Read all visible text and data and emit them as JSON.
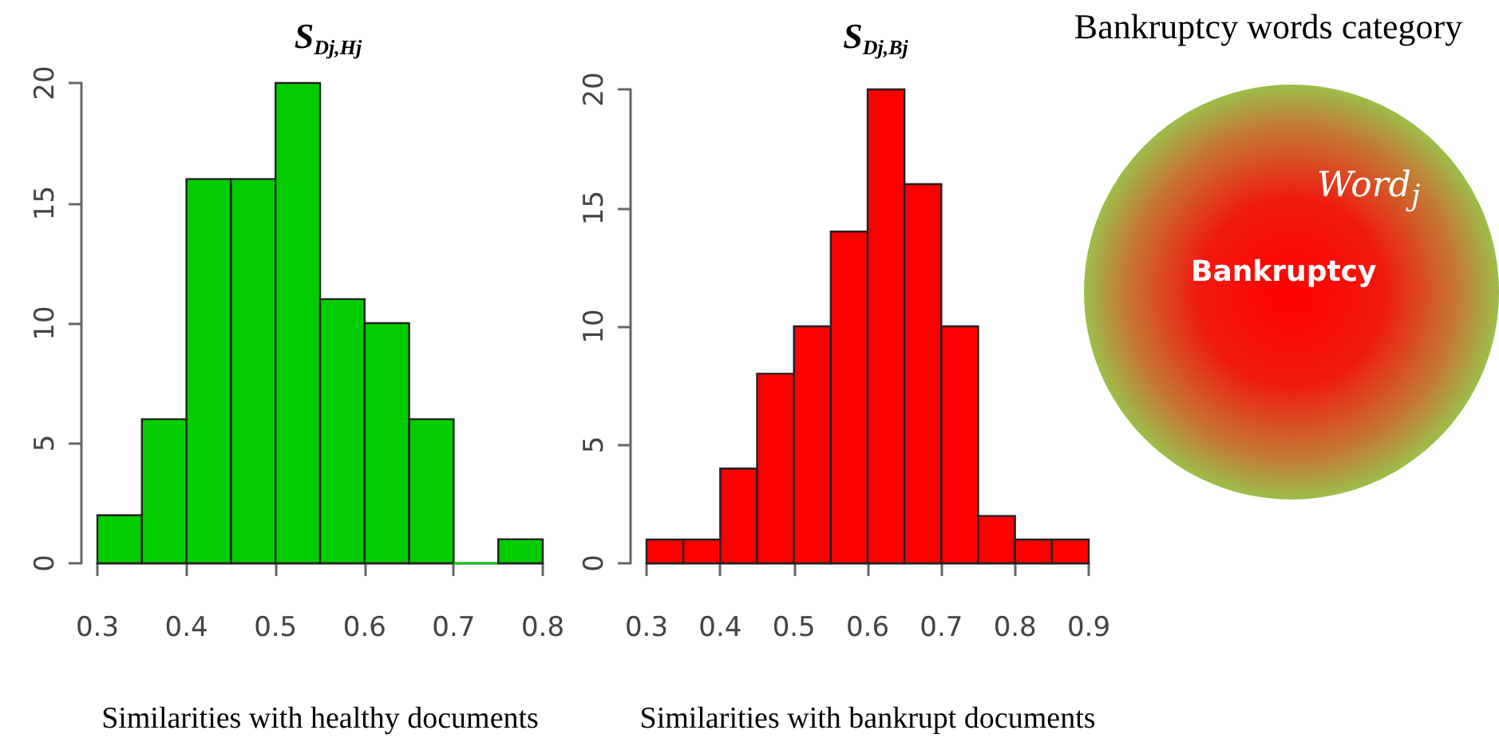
{
  "chart_data": [
    {
      "type": "histogram",
      "title": "S$_{Dj,Hj}$",
      "xlabel": "Similarities with healthy documents",
      "color": "#00cc00",
      "bins": [
        0.3,
        0.35,
        0.4,
        0.45,
        0.5,
        0.55,
        0.6,
        0.65,
        0.7,
        0.75,
        0.8
      ],
      "values": [
        2,
        6,
        16,
        16,
        20,
        11,
        10,
        6,
        0,
        1
      ],
      "xlim": [
        0.3,
        0.8
      ],
      "xticks": [
        0.3,
        0.4,
        0.5,
        0.6,
        0.7,
        0.8
      ],
      "ylim": [
        0,
        20
      ],
      "yticks": [
        0,
        5,
        10,
        15,
        20
      ]
    },
    {
      "type": "histogram",
      "title": "S$_{Dj,Bj}$",
      "xlabel": "Similarities with bankrupt documents",
      "color": "#ff0000",
      "bins": [
        0.3,
        0.35,
        0.4,
        0.45,
        0.5,
        0.55,
        0.6,
        0.65,
        0.7,
        0.75,
        0.8,
        0.85,
        0.9
      ],
      "values": [
        1,
        1,
        4,
        8,
        10,
        14,
        20,
        16,
        10,
        2,
        1,
        1
      ],
      "xlim": [
        0.3,
        0.9
      ],
      "xticks": [
        0.3,
        0.4,
        0.5,
        0.6,
        0.7,
        0.8,
        0.9
      ],
      "ylim": [
        0,
        20
      ],
      "yticks": [
        0,
        5,
        10,
        15,
        20
      ]
    },
    {
      "type": "other",
      "title": "Bankruptcy words category",
      "annotations": [
        "Word$_{j}$",
        "Bankruptcy"
      ]
    }
  ]
}
